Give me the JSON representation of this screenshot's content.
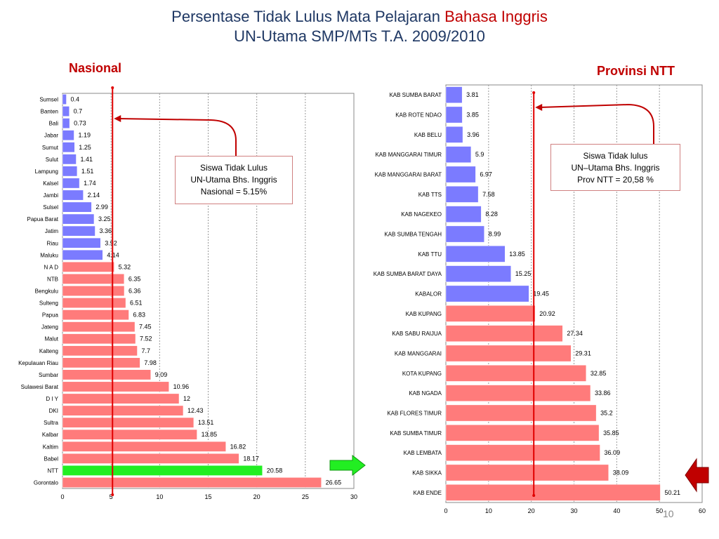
{
  "slide": {
    "title_line1_prefix": "Persentase Tidak Lulus Mata Pelajaran ",
    "title_line1_highlight": "Bahasa Inggris",
    "title_line2": "UN-Utama SMP/MTs T.A. 2009/2010",
    "page_number": "10",
    "colors": {
      "title": "#1f3864",
      "highlight": "#c00000",
      "below_avg_bar": "#7b7bff",
      "above_avg_bar": "#ff7b7b",
      "ntt_bar": "#22ee22",
      "ref_line": "#e00000",
      "green_arrow": "#22ee22",
      "red_arrow": "#c00000"
    }
  },
  "nasional": {
    "label": "Nasional",
    "callout": [
      "Siswa Tidak Lulus",
      "UN-Utama Bhs. Inggris",
      "Nasional = 5.15%"
    ]
  },
  "ntt": {
    "label": "Provinsi NTT",
    "callout": [
      "Siswa Tidak lulus",
      "UN–Utama  Bhs. Inggris",
      "Prov NTT  = 20,58 %"
    ]
  },
  "chart_data": [
    {
      "type": "bar",
      "orientation": "horizontal",
      "title": "Nasional",
      "categories": [
        "Sumsel",
        "Banten",
        "Bali",
        "Jabar",
        "Sumut",
        "Sulut",
        "Lampung",
        "Kalsel",
        "Jambi",
        "Sulsel",
        "Papua Barat",
        "Jatim",
        "Riau",
        "Maluku",
        "N A D",
        "NTB",
        "Bengkulu",
        "Sulteng",
        "Papua",
        "Jateng",
        "Malut",
        "Kalteng",
        "Kepulauan Riau",
        "Sumbar",
        "Sulawesi Barat",
        "D I Y",
        "DKI",
        "Sultra",
        "Kalbar",
        "Kaltim",
        "Babel",
        "NTT",
        "Gorontalo"
      ],
      "values": [
        0.4,
        0.7,
        0.73,
        1.19,
        1.25,
        1.41,
        1.51,
        1.74,
        2.14,
        2.99,
        3.25,
        3.36,
        3.92,
        4.14,
        5.32,
        6.35,
        6.36,
        6.51,
        6.83,
        7.45,
        7.52,
        7.7,
        7.98,
        9.09,
        10.96,
        12,
        12.43,
        13.51,
        13.85,
        16.82,
        18.17,
        20.58,
        26.65
      ],
      "value_labels": [
        "0.4",
        "0.7",
        "0.73",
        "1.19",
        "1.25",
        "1.41",
        "1.51",
        "1.74",
        "2.14",
        "2.99",
        "3.25",
        "3.36",
        "3.92",
        "4.14",
        "5.32",
        "6.35",
        "6.36",
        "6.51",
        "6.83",
        "7.45",
        "7.52",
        "7.7",
        "7.98",
        "9.09",
        "10.96",
        "12",
        "12.43",
        "13.51",
        "13.85",
        "16.82",
        "18.17",
        "20.58",
        "26.65"
      ],
      "xlim": [
        0,
        30
      ],
      "xticks": [
        0,
        5,
        10,
        15,
        20,
        25,
        30
      ],
      "reference_line": 5.15,
      "highlight_category": "NTT",
      "grid": "vertical dotted"
    },
    {
      "type": "bar",
      "orientation": "horizontal",
      "title": "Provinsi NTT",
      "categories": [
        "KAB SUMBA BARAT",
        "KAB ROTE NDAO",
        "KAB BELU",
        "KAB MANGGARAI TIMUR",
        "KAB MANGGARAI BARAT",
        "KAB TTS",
        "KAB NAGEKEO",
        "KAB SUMBA TENGAH",
        "KAB TTU",
        "KAB SUMBA BARAT DAYA",
        "KABALOR",
        "KAB KUPANG",
        "KAB SABU RAIJUA",
        "KAB MANGGARAI",
        "KOTA KUPANG",
        "KAB NGADA",
        "KAB FLORES TIMUR",
        "KAB SUMBA TIMUR",
        "KAB LEMBATA",
        "KAB SIKKA",
        "KAB ENDE"
      ],
      "values": [
        3.81,
        3.85,
        3.96,
        5.9,
        6.97,
        7.58,
        8.28,
        8.99,
        13.85,
        15.25,
        19.45,
        20.92,
        27.34,
        29.31,
        32.85,
        33.86,
        35.2,
        35.85,
        36.09,
        38.09,
        50.21
      ],
      "value_labels": [
        "3.81",
        "3.85",
        "3.96",
        "5.9",
        "6.97",
        "7.58",
        "8.28",
        "8.99",
        "13.85",
        "15.25",
        "19.45",
        "20.92",
        "27.34",
        "29.31",
        "32.85",
        "33.86",
        "35.2",
        "35.85",
        "36.09",
        "38.09",
        "50.21"
      ],
      "xlim": [
        0,
        60
      ],
      "xticks": [
        0,
        10,
        20,
        30,
        40,
        50,
        60
      ],
      "reference_line": 20.58,
      "highlight_category": "KAB ENDE",
      "grid": "vertical dotted"
    }
  ]
}
